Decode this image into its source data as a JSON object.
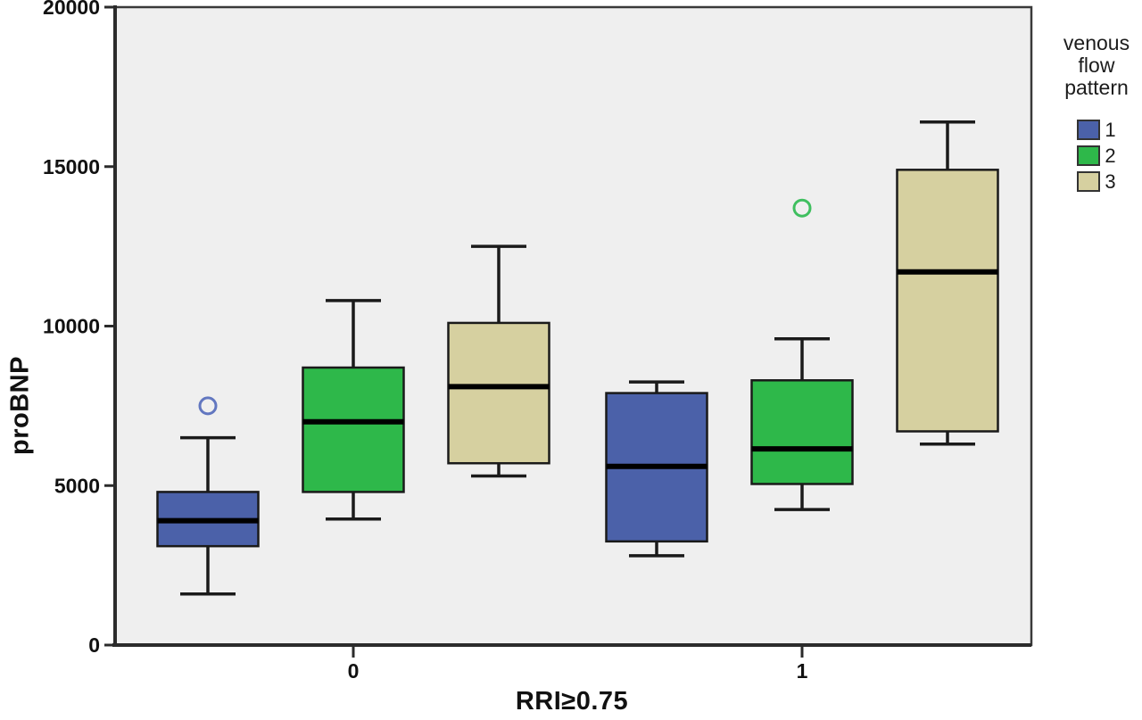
{
  "page": {
    "background": "#ffffff",
    "plot_background": "#efefef",
    "axis_color": "#2b2b2b",
    "border_color": "#3a3a3a"
  },
  "y_axis": {
    "title": "proBNP",
    "tick_labels": [
      "0",
      "5000",
      "10000",
      "15000",
      "20000"
    ]
  },
  "x_axis": {
    "title": "RRI≥0.75",
    "tick_labels": [
      "0",
      "1"
    ]
  },
  "legend": {
    "title_lines": [
      "venous",
      "flow",
      "pattern"
    ],
    "items": [
      {
        "label": "1",
        "color": "#4b61a9"
      },
      {
        "label": "2",
        "#comment": "",
        "color": "#2eb84a"
      },
      {
        "label": "3",
        "color": "#d6d0a0"
      }
    ]
  },
  "chart_data": {
    "type": "boxplot",
    "title": "",
    "xlabel": "RRI≥0.75",
    "ylabel": "proBNP",
    "ylim": [
      0,
      20000
    ],
    "y_ticks": [
      0,
      5000,
      10000,
      15000,
      20000
    ],
    "grid": false,
    "legend_position": "right",
    "legend_title": "venous flow pattern",
    "categories": [
      "0",
      "1"
    ],
    "series": [
      {
        "name": "1",
        "color": "#4b61a9",
        "outlier_color": "#6277c0",
        "boxes": [
          {
            "category": "0",
            "whisker_low": 1600,
            "q1": 3100,
            "median": 3900,
            "q3": 4800,
            "whisker_high": 6500,
            "outliers": [
              7500
            ]
          },
          {
            "category": "1",
            "whisker_low": 2800,
            "q1": 3250,
            "median": 5600,
            "q3": 7900,
            "whisker_high": 8250,
            "outliers": []
          }
        ]
      },
      {
        "name": "2",
        "color": "#2eb84a",
        "outlier_color": "#3fbf5f",
        "boxes": [
          {
            "category": "0",
            "whisker_low": 3950,
            "q1": 4800,
            "median": 7000,
            "q3": 8700,
            "whisker_high": 10800,
            "outliers": []
          },
          {
            "category": "1",
            "whisker_low": 4250,
            "q1": 5050,
            "median": 6150,
            "q3": 8300,
            "whisker_high": 9600,
            "outliers": [
              13700
            ]
          }
        ]
      },
      {
        "name": "3",
        "color": "#d6d0a0",
        "outlier_color": "#c9c28a",
        "boxes": [
          {
            "category": "0",
            "whisker_low": 5300,
            "q1": 5700,
            "median": 8100,
            "q3": 10100,
            "whisker_high": 12500,
            "outliers": []
          },
          {
            "category": "1",
            "whisker_low": 6300,
            "q1": 6700,
            "median": 11700,
            "q3": 14900,
            "whisker_high": 16400,
            "outliers": []
          }
        ]
      }
    ]
  }
}
